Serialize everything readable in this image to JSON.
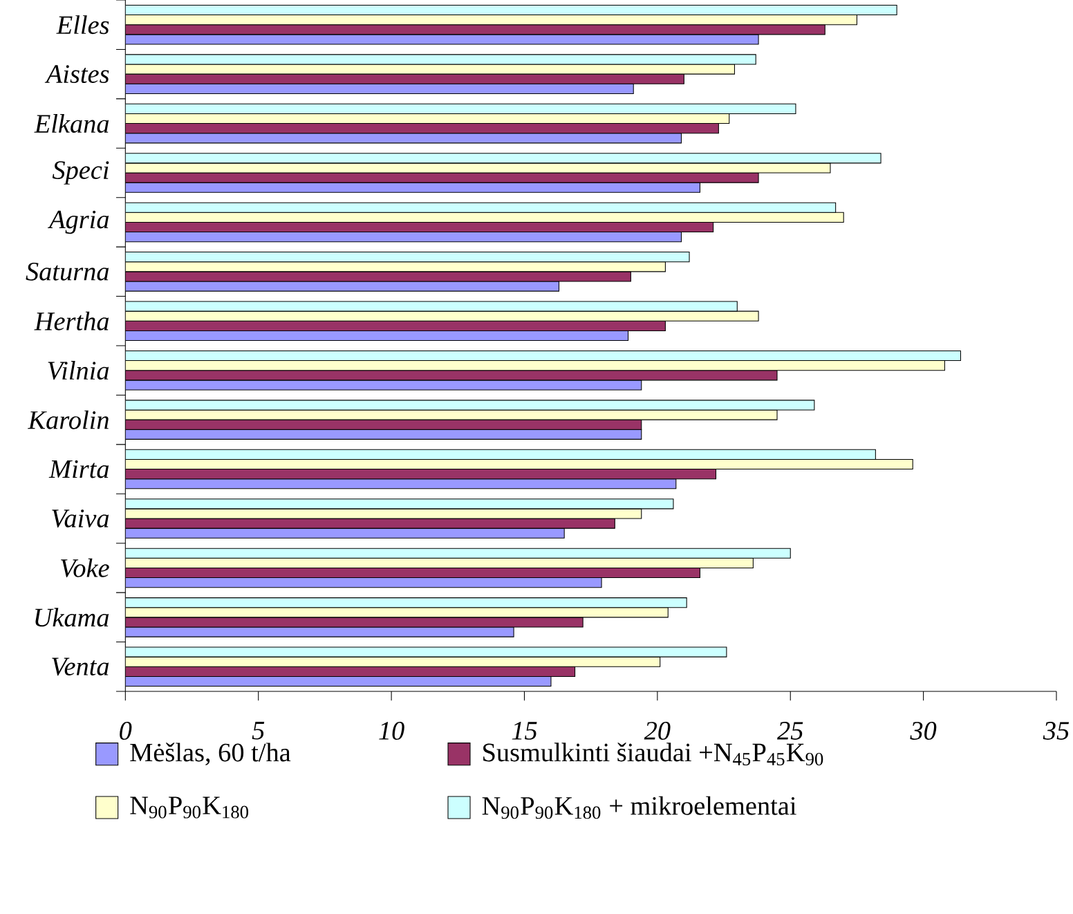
{
  "chart_data": {
    "type": "bar",
    "orientation": "horizontal",
    "categories": [
      "Elles",
      "Aistes",
      "Elkana",
      "Speci",
      "Agria",
      "Saturna",
      "Hertha",
      "Vilnia",
      "Karolin",
      "Mirta",
      "Vaiva",
      "Voke",
      "Ukama",
      "Venta"
    ],
    "series": [
      {
        "name": "Mėšlas, 60 t/ha",
        "color": "#9999ff",
        "values": [
          23.8,
          19.1,
          20.9,
          21.6,
          20.9,
          16.3,
          18.9,
          19.4,
          19.4,
          20.7,
          16.5,
          17.9,
          14.6,
          16.0
        ]
      },
      {
        "name": "Susmulkinti šiaudai +N$_{45}$P$_{45}$K$_{90}$",
        "color": "#993366",
        "values": [
          26.3,
          21.0,
          22.3,
          23.8,
          22.1,
          19.0,
          20.3,
          24.5,
          19.4,
          22.2,
          18.4,
          21.6,
          17.2,
          16.9
        ]
      },
      {
        "name": "N$_{90}$P$_{90}$K$_{180}$",
        "color": "#ffffcc",
        "values": [
          27.5,
          22.9,
          22.7,
          26.5,
          27.0,
          20.3,
          23.8,
          30.8,
          24.5,
          29.6,
          19.4,
          23.6,
          20.4,
          20.1
        ]
      },
      {
        "name": "N$_{90}$P$_{90}$K$_{180}$ + mikroelementai",
        "color": "#ccffff",
        "values": [
          29.0,
          23.7,
          25.2,
          28.4,
          26.7,
          21.2,
          23.0,
          31.4,
          25.9,
          28.2,
          20.6,
          25.0,
          21.1,
          22.6
        ]
      }
    ],
    "xlim": [
      0,
      35
    ],
    "xticks": [
      0,
      5,
      10,
      15,
      20,
      25,
      30,
      35
    ],
    "grid": false,
    "legend": "bottom"
  }
}
